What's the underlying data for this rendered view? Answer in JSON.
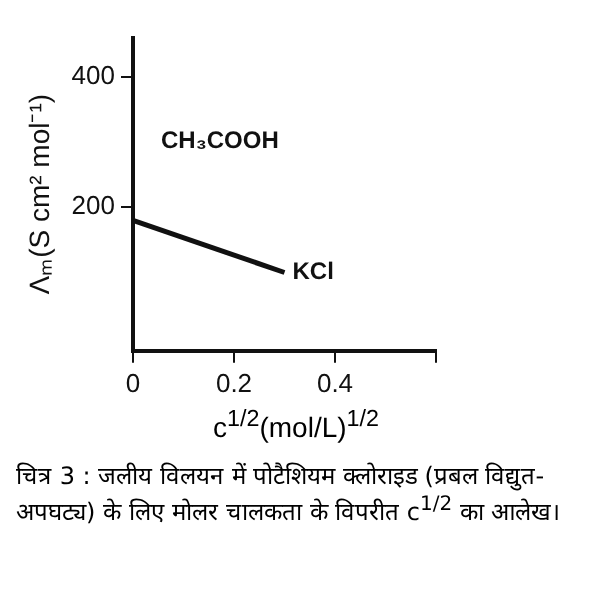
{
  "chart_data": {
    "type": "line",
    "ylabel": "Λₘ(S cm² mol⁻¹)",
    "xlabel": "c$^{1/2}$(mol/L)$^{1/2}$",
    "series": [
      {
        "name": "KCl",
        "color": "#111111",
        "x": [
          0,
          0.3
        ],
        "values": [
          180,
          100
        ]
      }
    ],
    "xlim": [
      0,
      0.6
    ],
    "xticks": [
      0,
      0.2,
      0.4,
      {
        "value": 0.6,
        "label": null
      }
    ],
    "ylim": [
      -20,
      460
    ],
    "yticks": [
      200,
      400
    ],
    "grid": false,
    "legend": false,
    "marker": "none",
    "line_style": "solid",
    "annotations": [
      "CH₃COOH",
      "चित्र 3 : जलीय विलयन में पोटैशियम क्लोराइड (प्रबल विद्युत-अपघट्य) के लिए मोलर चालकता के विपरीत c$^{1/2}$ का आलेख।"
    ]
  }
}
